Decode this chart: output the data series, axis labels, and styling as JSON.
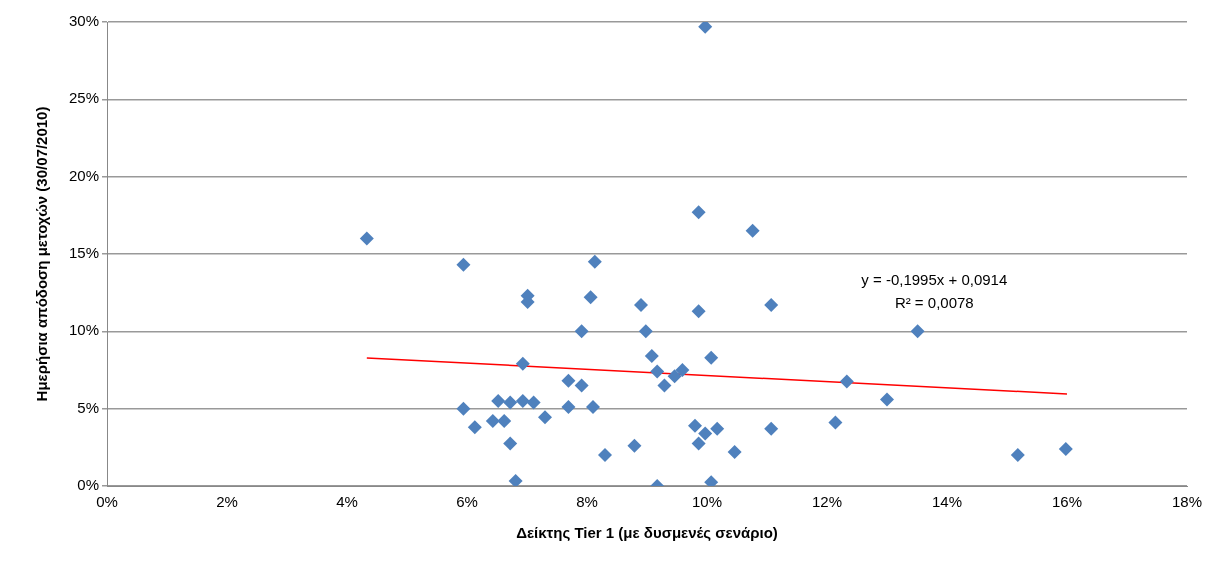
{
  "chart_data": {
    "type": "scatter",
    "xlabel": "Δείκτης Tier 1 (με δυσμενές σενάριο)",
    "ylabel": "Ημερήσια απόδοση μετοχών (30/07/2010)",
    "annotations": [
      "y = -0,1995x + 0,0914",
      "R² = 0,0078"
    ],
    "xlim": [
      0,
      18
    ],
    "xticks": [
      {
        "value": 0,
        "label": "0%"
      },
      {
        "value": 2,
        "label": "2%"
      },
      {
        "value": 4,
        "label": "4%"
      },
      {
        "value": 6,
        "label": "6%"
      },
      {
        "value": 8,
        "label": "8%"
      },
      {
        "value": 10,
        "label": "10%"
      },
      {
        "value": 12,
        "label": "12%"
      },
      {
        "value": 14,
        "label": "14%"
      },
      {
        "value": 16,
        "label": "16%"
      },
      {
        "value": 18,
        "label": "18%"
      }
    ],
    "ylim": [
      0,
      30
    ],
    "yticks": [
      {
        "value": 0,
        "label": "0%"
      },
      {
        "value": 5,
        "label": "5%"
      },
      {
        "value": 10,
        "label": "10%"
      },
      {
        "value": 15,
        "label": "15%"
      },
      {
        "value": 20,
        "label": "20%"
      },
      {
        "value": 25,
        "label": "25%"
      },
      {
        "value": 30,
        "label": "30%"
      }
    ],
    "grid": "y",
    "legend": false,
    "marker": "diamond",
    "series": [
      {
        "color": "#4f81bd",
        "x": [
          4.33,
          5.94,
          5.94,
          6.13,
          6.43,
          6.52,
          6.62,
          6.72,
          6.72,
          6.81,
          6.93,
          6.93,
          7.01,
          7.01,
          7.11,
          7.3,
          7.69,
          7.69,
          7.91,
          7.91,
          8.06,
          8.1,
          8.13,
          8.3,
          8.79,
          8.9,
          8.98,
          9.08,
          9.17,
          9.29,
          9.17,
          9.46,
          9.59,
          9.8,
          9.86,
          9.86,
          9.86,
          9.97,
          9.97,
          10.07,
          10.07,
          10.17,
          10.46,
          10.76,
          11.07,
          11.07,
          12.14,
          12.33,
          13.0,
          13.51,
          15.18,
          15.98
        ],
        "values": [
          16.0,
          14.3,
          5.0,
          3.8,
          4.2,
          5.5,
          4.2,
          5.4,
          2.75,
          0.33,
          7.9,
          5.5,
          12.3,
          11.9,
          5.4,
          4.45,
          6.8,
          5.1,
          6.5,
          10.0,
          12.2,
          5.1,
          14.5,
          2.0,
          2.6,
          11.7,
          10.0,
          8.4,
          7.4,
          6.5,
          0.0,
          7.1,
          7.5,
          3.9,
          2.75,
          11.3,
          17.7,
          29.7,
          3.4,
          8.3,
          0.25,
          3.7,
          2.2,
          16.5,
          11.7,
          3.7,
          4.1,
          6.75,
          5.6,
          10.0,
          2.0,
          2.4
        ]
      },
      {
        "type": "line",
        "color": "#ff0000",
        "marker": "none",
        "x": [
          4.33,
          16.0
        ],
        "values": [
          8.28,
          5.95
        ]
      }
    ]
  }
}
